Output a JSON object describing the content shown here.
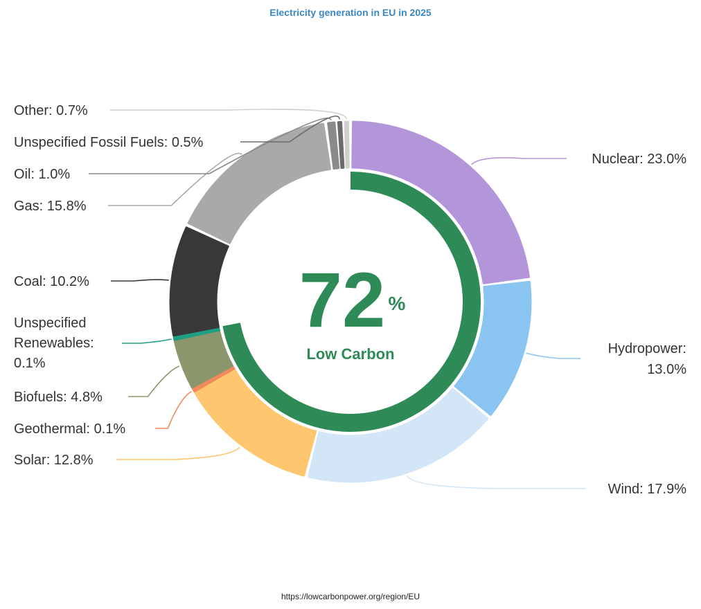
{
  "title": "Electricity generation in EU in 2025",
  "source": "https://lowcarbonpower.org/region/EU",
  "center": {
    "value": "72",
    "unit": "%",
    "label": "Low Carbon",
    "fraction": 0.72,
    "color": "#2e8b57"
  },
  "chart_data": {
    "type": "pie",
    "title": "Electricity generation in EU in 2025",
    "slices": [
      {
        "name": "Nuclear",
        "value": 23.0,
        "label": "Nuclear: 23.0%",
        "color": "#b395da"
      },
      {
        "name": "Hydropower",
        "value": 13.0,
        "label": "Hydropower: 13.0%",
        "color": "#8ac5f2"
      },
      {
        "name": "Wind",
        "value": 17.9,
        "label": "Wind: 17.9%",
        "color": "#d2e6f7"
      },
      {
        "name": "Solar",
        "value": 12.8,
        "label": "Solar: 12.8%",
        "color": "#fec76f"
      },
      {
        "name": "Geothermal",
        "value": 0.1,
        "label": "Geothermal: 0.1%",
        "color": "#f08a5a"
      },
      {
        "name": "Biofuels",
        "value": 4.8,
        "label": "Biofuels: 4.8%",
        "color": "#8a966c"
      },
      {
        "name": "Unspecified Renewables",
        "value": 0.1,
        "label": "Unspecified Renewables: 0.1%",
        "color": "#1f9e83"
      },
      {
        "name": "Coal",
        "value": 10.2,
        "label": "Coal: 10.2%",
        "color": "#383838"
      },
      {
        "name": "Gas",
        "value": 15.8,
        "label": "Gas: 15.8%",
        "color": "#a9a9a9"
      },
      {
        "name": "Oil",
        "value": 1.0,
        "label": "Oil: 1.0%",
        "color": "#8a8a8a"
      },
      {
        "name": "Unspecified Fossil Fuels",
        "value": 0.5,
        "label": "Unspecified Fossil Fuels: 0.5%",
        "color": "#6b6b6b"
      },
      {
        "name": "Other",
        "value": 0.7,
        "label": "Other: 0.7%",
        "color": "#cfcfcf"
      }
    ]
  }
}
